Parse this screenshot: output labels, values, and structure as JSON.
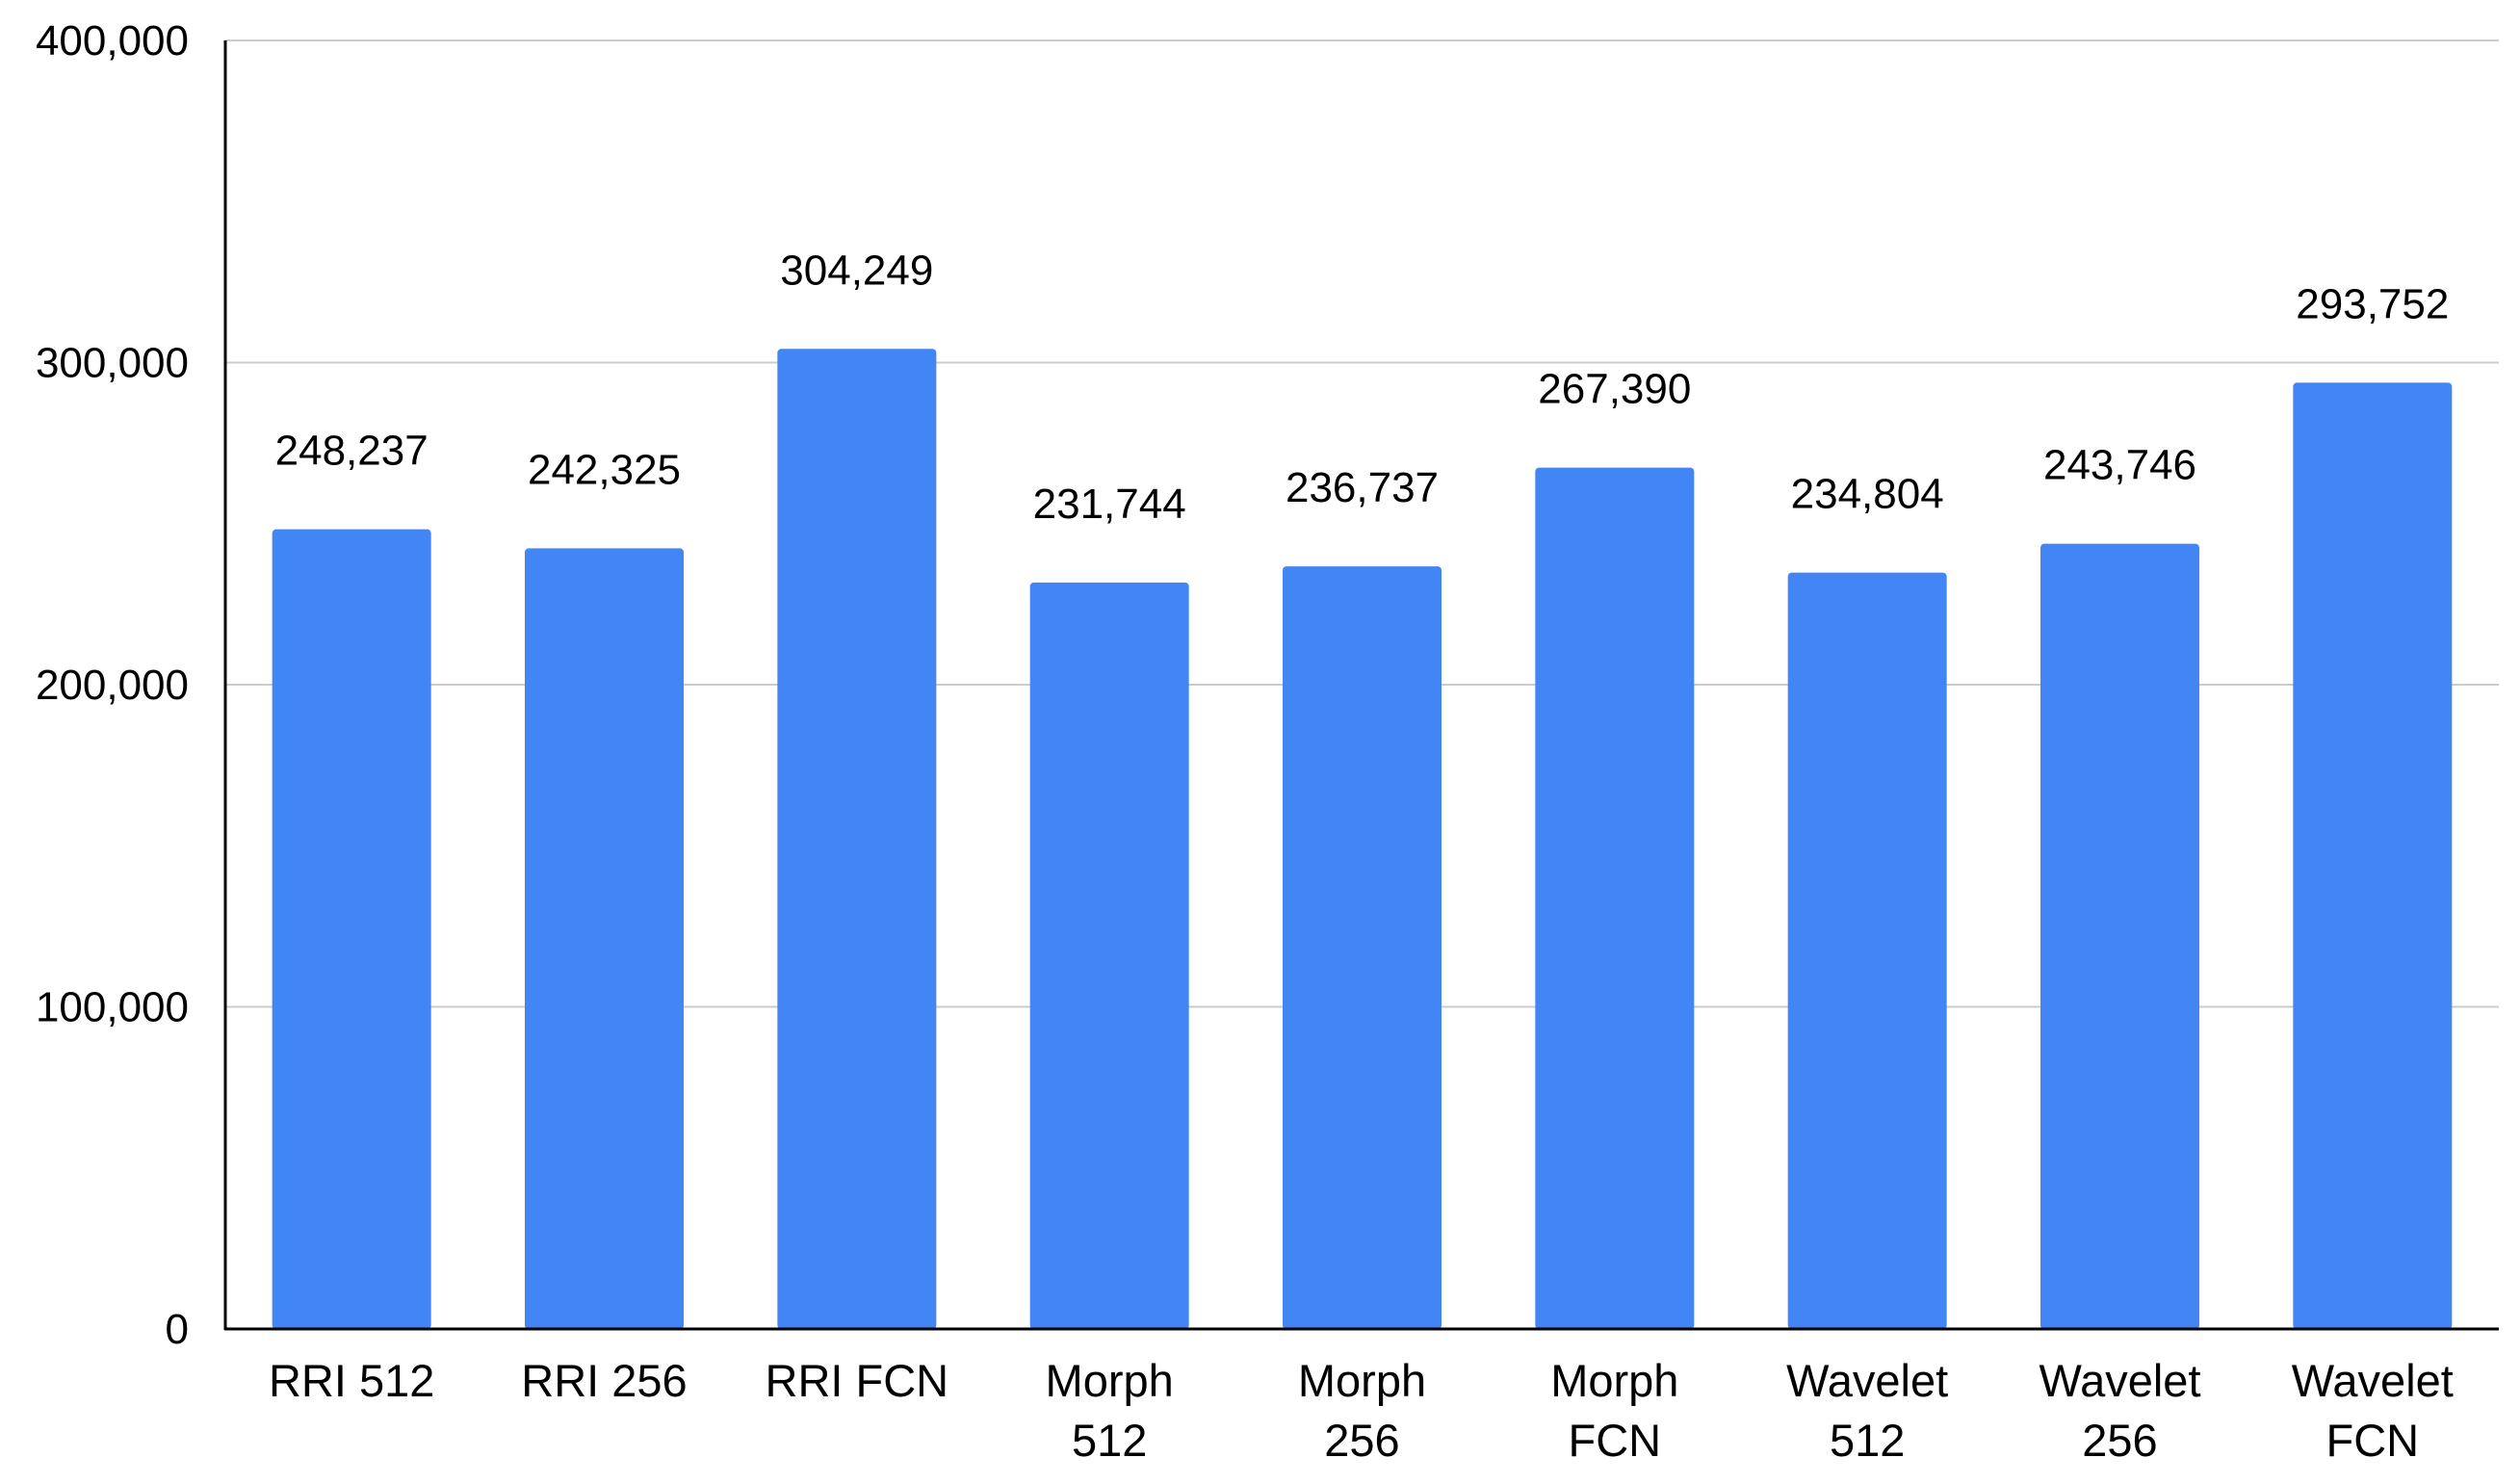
{
  "chart_data": {
    "type": "bar",
    "title": "",
    "xlabel": "",
    "ylabel": "",
    "categories": [
      [
        "RRI 512"
      ],
      [
        "RRI 256"
      ],
      [
        "RRI FCN"
      ],
      [
        "Morph",
        "512"
      ],
      [
        "Morph",
        "256"
      ],
      [
        "Morph",
        "FCN"
      ],
      [
        "Wavelet",
        "512"
      ],
      [
        "Wavelet",
        "256"
      ],
      [
        "Wavelet",
        "FCN"
      ]
    ],
    "values": [
      248237,
      242325,
      304249,
      231744,
      236737,
      267390,
      234804,
      243746,
      293752
    ],
    "value_labels": [
      "248,237",
      "242,325",
      "304,249",
      "231,744",
      "236,737",
      "267,390",
      "234,804",
      "243,746",
      "293,752"
    ],
    "ylim": [
      0,
      400000
    ],
    "yticks": [
      0,
      100000,
      200000,
      300000,
      400000
    ],
    "ytick_labels": [
      "0",
      "100,000",
      "200,000",
      "300,000",
      "400,000"
    ],
    "grid": true,
    "legend": "none",
    "bar_color": "#4285F4",
    "grid_color": "#CCCCCC",
    "axis_color": "#000000"
  }
}
